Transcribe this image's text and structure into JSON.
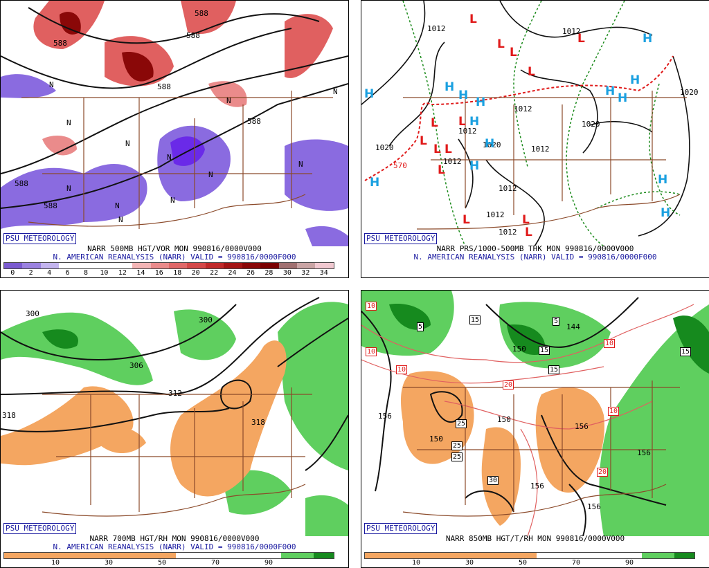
{
  "panels": {
    "tl": {
      "badge": "PSU METEOROLOGY",
      "title": "NARR 500MB HGT/VOR MON 990816/0000V000",
      "subtitle": "N. AMERICAN REANALYSIS (NARR) VALID = 990816/0000F000",
      "scale": [
        "0",
        "2",
        "4",
        "6",
        "8",
        "10",
        "12",
        "14",
        "16",
        "18",
        "20",
        "22",
        "24",
        "26",
        "28",
        "30",
        "32",
        "34"
      ],
      "scale_colors": [
        "#7b5bd0",
        "#9b82e0",
        "#c3b4ee",
        "#ffffff",
        "#ffffff",
        "#ffffff",
        "#ffffff",
        "#f2b4b4",
        "#ea8b8b",
        "#e06868",
        "#d44848",
        "#c02a2a",
        "#a41515",
        "#8a0808",
        "#7a0000",
        "#a07070",
        "#c9a4a4",
        "#f0c8d0"
      ],
      "contours": [
        "588",
        "588",
        "588",
        "588",
        "588",
        "588",
        "588"
      ],
      "marks": [
        "N",
        "N",
        "N",
        "N",
        "N",
        "N",
        "N",
        "N",
        "N",
        "N",
        "N",
        "N"
      ]
    },
    "tr": {
      "badge": "PSU METEOROLOGY",
      "title": "NARR PRS/1000-500MB THK MON 990816/0000V000",
      "subtitle": "N. AMERICAN REANALYSIS (NARR) VALID = 990816/0000F000",
      "contours": [
        "1012",
        "1012",
        "1012",
        "1012",
        "1012",
        "1012",
        "1012",
        "1012",
        "1012",
        "1020",
        "1020",
        "1020",
        "1020",
        "570"
      ],
      "H": "H",
      "L": "L"
    },
    "bl": {
      "badge": "PSU METEOROLOGY",
      "title": "NARR 700MB HGT/RH MON 990816/0000V000",
      "subtitle": "N. AMERICAN REANALYSIS (NARR) VALID = 990816/0000F000",
      "scale": [
        "10",
        "30",
        "50",
        "70",
        "90"
      ],
      "contours": [
        "300",
        "300",
        "306",
        "312",
        "318",
        "318"
      ]
    },
    "br": {
      "badge": "PSU METEOROLOGY",
      "title": "NARR 850MB HGT/T/RH MON 990816/0000V000",
      "scale": [
        "10",
        "30",
        "50",
        "70",
        "90"
      ],
      "contours": [
        "156",
        "150",
        "150",
        "150",
        "156",
        "156",
        "156",
        "156",
        "144"
      ],
      "temps": [
        "10",
        "10",
        "10",
        "10",
        "5",
        "5",
        "15",
        "15",
        "15",
        "15",
        "20",
        "20",
        "25",
        "25",
        "25",
        "30",
        "10"
      ]
    }
  },
  "colors": {
    "dry": "#f4a661",
    "moist_light": "#5fcf5f",
    "moist_dark": "#168a1e",
    "vort_neg": "#8a6be0",
    "vort_pos": "#e06060",
    "high": "#1aa0e0",
    "low": "#e01a1a",
    "border": "#8b4a2a",
    "thickness": "#1a8a1a"
  }
}
